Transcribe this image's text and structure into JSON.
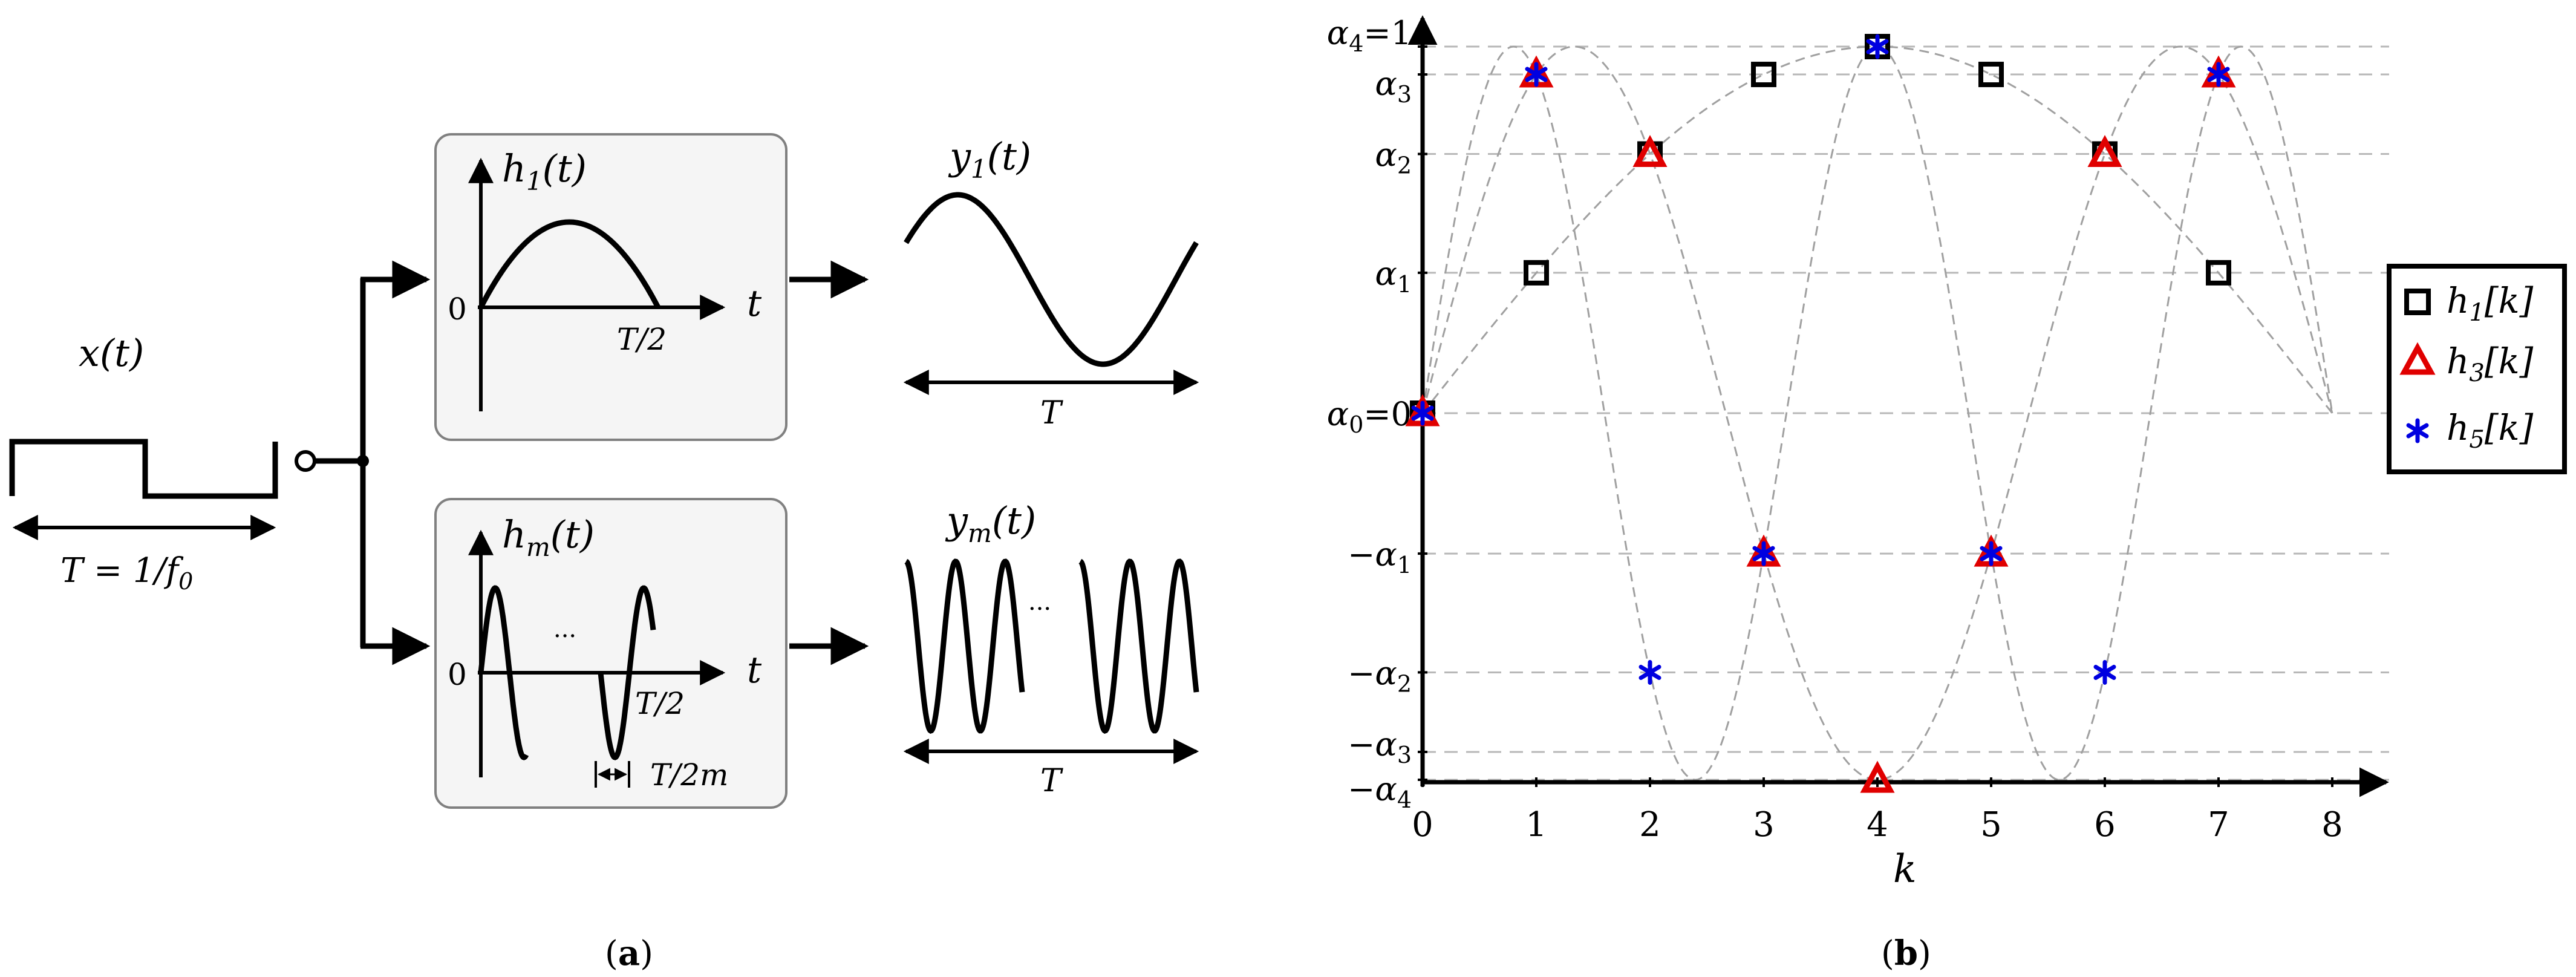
{
  "panel_a": {
    "caption_open": "(",
    "caption_letter": "a",
    "caption_close": ")",
    "input": {
      "name_base": "x",
      "name_arg": "(t)",
      "period_parts": {
        "t": "T",
        "eq": " = 1/",
        "f": "f",
        "sub": "0"
      }
    },
    "branch_top": {
      "h_base": "h",
      "h_sub": "1",
      "h_arg": "(t)",
      "zero": "0",
      "t_axis": "t",
      "half": {
        "t": "T",
        "rest": "/2"
      },
      "y_base": "y",
      "y_sub": "1",
      "y_arg": "(t)",
      "period": "T"
    },
    "branch_bottom": {
      "h_base": "h",
      "h_sub": "m",
      "h_arg": "(t)",
      "zero": "0",
      "t_axis": "t",
      "dots": "···",
      "half": {
        "t": "T",
        "rest": "/2"
      },
      "small": {
        "t": "T",
        "rest": "/2",
        "m": "m"
      },
      "y_base": "y",
      "y_sub": "m",
      "y_arg": "(t)",
      "dots_y": "···",
      "period": "T"
    },
    "colors": {
      "box_fill": "#f5f5f5",
      "box_stroke": "#808080",
      "line": "#000000"
    }
  },
  "panel_b": {
    "caption_open": "(",
    "caption_letter": "b",
    "caption_close": ")",
    "xlabel": "k",
    "ytick_labels": [
      {
        "minus": "",
        "sym": "α",
        "sub": "4",
        "suffix": "=1"
      },
      {
        "minus": "",
        "sym": "α",
        "sub": "3",
        "suffix": ""
      },
      {
        "minus": "",
        "sym": "α",
        "sub": "2",
        "suffix": ""
      },
      {
        "minus": "",
        "sym": "α",
        "sub": "1",
        "suffix": ""
      },
      {
        "minus": "",
        "sym": "α",
        "sub": "0",
        "suffix": "=0"
      },
      {
        "minus": "−",
        "sym": "α",
        "sub": "1",
        "suffix": ""
      },
      {
        "minus": "−",
        "sym": "α",
        "sub": "2",
        "suffix": ""
      },
      {
        "minus": "−",
        "sym": "α",
        "sub": "3",
        "suffix": ""
      },
      {
        "minus": "−",
        "sym": "α",
        "sub": "4",
        "suffix": ""
      }
    ],
    "legend": [
      {
        "base": "h",
        "sub": "1",
        "arg": "[k]",
        "marker": "square",
        "color": "#000000"
      },
      {
        "base": "h",
        "sub": "3",
        "arg": "[k]",
        "marker": "triangle",
        "color": "#e00000"
      },
      {
        "base": "h",
        "sub": "5",
        "arg": "[k]",
        "marker": "star",
        "color": "#0000e0"
      }
    ]
  },
  "chart_data": {
    "type": "scatter",
    "xlabel": "k",
    "xticks": [
      "0",
      "1",
      "2",
      "3",
      "4",
      "5",
      "6",
      "7",
      "8"
    ],
    "xlim": [
      0,
      8.5
    ],
    "ylim": [
      -1,
      1
    ],
    "yticks": [
      1,
      0.924,
      0.707,
      0.383,
      0,
      -0.383,
      -0.707,
      -0.924,
      -1
    ],
    "grid": "horizontal dashed at y ticks",
    "legend_position": "right",
    "series": [
      {
        "name": "h1[k]",
        "marker": "square",
        "color": "#000000",
        "x": [
          0,
          1,
          2,
          3,
          4,
          5,
          6,
          7
        ],
        "y": [
          0,
          0.383,
          0.707,
          0.924,
          1,
          0.924,
          0.707,
          0.383
        ]
      },
      {
        "name": "h3[k]",
        "marker": "triangle",
        "color": "#e00000",
        "x": [
          0,
          1,
          2,
          3,
          4,
          5,
          6,
          7
        ],
        "y": [
          0,
          0.924,
          0.707,
          -0.383,
          -1,
          -0.383,
          0.707,
          0.924
        ]
      },
      {
        "name": "h5[k]",
        "marker": "star",
        "color": "#0000e0",
        "x": [
          0,
          1,
          2,
          3,
          4,
          5,
          6,
          7
        ],
        "y": [
          0,
          0.924,
          -0.707,
          -0.383,
          1,
          -0.383,
          -0.707,
          0.924
        ]
      }
    ],
    "curves": [
      {
        "harmonic": 1,
        "style": "dashed",
        "color": "#a0a0a0",
        "x_range": [
          0,
          8
        ]
      },
      {
        "harmonic": 3,
        "style": "dashed",
        "color": "#a0a0a0",
        "x_range": [
          0,
          8
        ]
      },
      {
        "harmonic": 5,
        "style": "dashed",
        "color": "#a0a0a0",
        "x_range": [
          0,
          8
        ]
      }
    ]
  }
}
